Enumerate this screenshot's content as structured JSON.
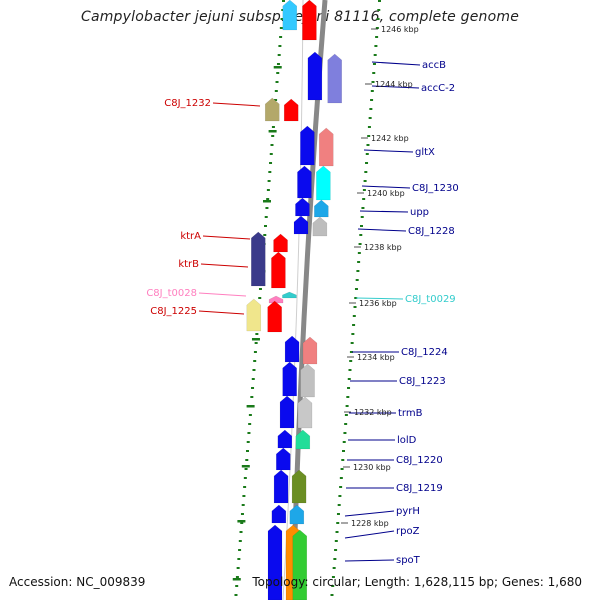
{
  "title": "Campylobacter jejuni subsp. jejuni 81116, complete genome",
  "accession": "Accession: NC_009839",
  "summary": "Topology: circular; Length: 1,628,115 bp; Genes: 1,680",
  "colors": {
    "cds_blue": "#0a0aee",
    "cds_red": "#ff0000",
    "trna_pink": "#ff7fbf",
    "trna_cyan": "#33cccc",
    "right_label": "#00008b",
    "left_label": "#cc0000",
    "dots": "#1a7a1a",
    "backbone": "#888888"
  },
  "ticks": [
    "1246 kbp",
    "1244 kbp",
    "1242 kbp",
    "1240 kbp",
    "1238 kbp",
    "1236 kbp",
    "1234 kbp",
    "1232 kbp",
    "1230 kbp",
    "1228 kbp"
  ],
  "right_labels": [
    "accB",
    "accC-2",
    "gltX",
    "C8J_1230",
    "upp",
    "C8J_1228",
    "C8J_t0029",
    "C8J_1224",
    "C8J_1223",
    "trmB",
    "lolD",
    "C8J_1220",
    "C8J_1219",
    "pyrH",
    "rpoZ",
    "spoT"
  ],
  "left_labels": [
    "C8J_1232",
    "ktrA",
    "ktrB",
    "C8J_t0028",
    "C8J_1225"
  ]
}
